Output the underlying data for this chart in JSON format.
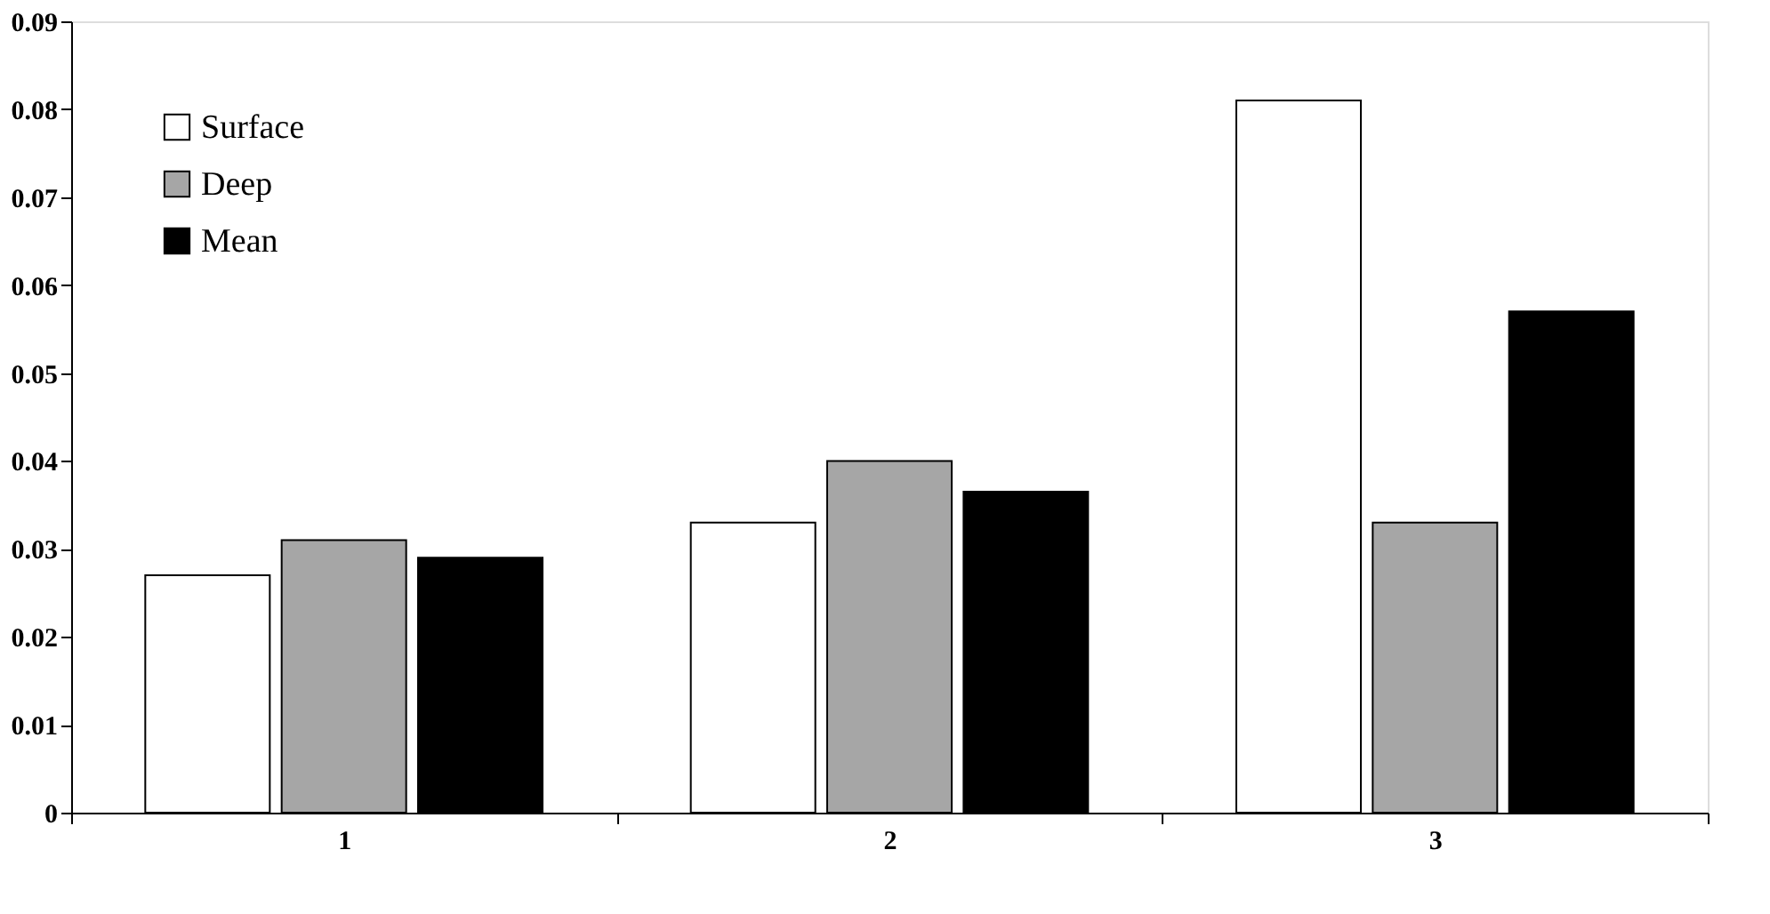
{
  "chart_data": {
    "type": "bar",
    "categories": [
      "1",
      "2",
      "3"
    ],
    "series": [
      {
        "name": "Surface",
        "color": "#ffffff",
        "values": [
          0.027,
          0.033,
          0.081
        ]
      },
      {
        "name": "Deep",
        "color": "#a6a6a6",
        "values": [
          0.031,
          0.04,
          0.033
        ]
      },
      {
        "name": "Mean",
        "color": "#000000",
        "values": [
          0.029,
          0.0365,
          0.057
        ]
      }
    ],
    "ylim": [
      0,
      0.09
    ],
    "yticks": [
      0,
      0.01,
      0.02,
      0.03,
      0.04,
      0.05,
      0.06,
      0.07,
      0.08,
      0.09
    ],
    "grid": false,
    "legend": "top left"
  }
}
